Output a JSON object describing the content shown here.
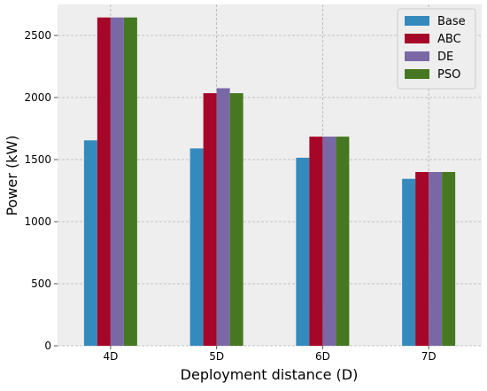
{
  "chart_data": {
    "type": "bar",
    "title": "",
    "xlabel": "Deployment distance (D)",
    "ylabel": "Power (kW)",
    "categories": [
      "4D",
      "5D",
      "6D",
      "7D"
    ],
    "ylim": [
      0,
      2750
    ],
    "yticks": [
      0,
      500,
      1000,
      1500,
      2000,
      2500
    ],
    "grid": true,
    "legend_position": "top-right",
    "series": [
      {
        "name": "Base",
        "color": "#348ABD",
        "values": [
          1655,
          1590,
          1515,
          1345
        ]
      },
      {
        "name": "ABC",
        "color": "#A60628",
        "values": [
          2645,
          2035,
          1685,
          1400
        ]
      },
      {
        "name": "DE",
        "color": "#7A68A6",
        "values": [
          2645,
          2075,
          1685,
          1400
        ]
      },
      {
        "name": "PSO",
        "color": "#467821",
        "values": [
          2645,
          2035,
          1685,
          1400
        ]
      }
    ]
  }
}
